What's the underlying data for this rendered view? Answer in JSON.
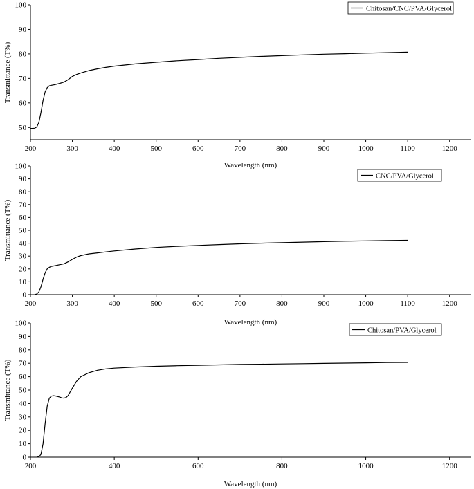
{
  "chart_data": [
    {
      "type": "line",
      "xlabel": "Wavelength (nm)",
      "ylabel": "Transmittance (T%)",
      "xlim": [
        200,
        1250
      ],
      "ylim": [
        45,
        100
      ],
      "xticks": [
        200,
        300,
        400,
        500,
        600,
        700,
        800,
        900,
        1000,
        1100,
        1200
      ],
      "yticks": [
        50,
        60,
        70,
        80,
        90,
        100
      ],
      "legend_position": "top-right",
      "series": [
        {
          "name": "Chitosan/CNC/PVA/Glycerol",
          "x": [
            200,
            210,
            215,
            220,
            225,
            230,
            235,
            240,
            245,
            250,
            260,
            270,
            280,
            290,
            300,
            310,
            320,
            340,
            360,
            380,
            400,
            450,
            500,
            550,
            600,
            650,
            700,
            750,
            800,
            850,
            900,
            950,
            1000,
            1050,
            1100
          ],
          "y": [
            49.6,
            49.7,
            50.2,
            52,
            56,
            61,
            64.5,
            66.2,
            67,
            67.2,
            67.5,
            68,
            68.5,
            69.5,
            70.8,
            71.6,
            72.2,
            73.2,
            73.9,
            74.5,
            75,
            75.9,
            76.6,
            77.2,
            77.7,
            78.2,
            78.6,
            79,
            79.3,
            79.6,
            79.9,
            80.1,
            80.3,
            80.5,
            80.7
          ]
        }
      ]
    },
    {
      "type": "line",
      "xlabel": "Wavelength (nm)",
      "ylabel": "Transmittance (T%)",
      "xlim": [
        200,
        1250
      ],
      "ylim": [
        0,
        100
      ],
      "xticks": [
        200,
        300,
        400,
        500,
        600,
        700,
        800,
        900,
        1000,
        1100,
        1200
      ],
      "yticks": [
        0,
        10,
        20,
        30,
        40,
        50,
        60,
        70,
        80,
        90,
        100
      ],
      "legend_position": "top-right",
      "series": [
        {
          "name": "CNC/PVA/Glycerol",
          "x": [
            210,
            215,
            220,
            225,
            230,
            235,
            240,
            245,
            250,
            260,
            270,
            280,
            290,
            300,
            310,
            320,
            340,
            360,
            380,
            400,
            450,
            500,
            550,
            600,
            650,
            700,
            750,
            800,
            850,
            900,
            950,
            1000,
            1050,
            1100
          ],
          "y": [
            0,
            0.5,
            2,
            6,
            12,
            17,
            20,
            21.3,
            22,
            22.6,
            23.3,
            24,
            25.5,
            27.5,
            29.2,
            30.4,
            31.7,
            32.5,
            33.2,
            34,
            35.5,
            36.7,
            37.6,
            38.3,
            38.9,
            39.5,
            40,
            40.4,
            40.8,
            41.2,
            41.5,
            41.8,
            42,
            42.2
          ]
        }
      ]
    },
    {
      "type": "line",
      "xlabel": "Wavelength (nm)",
      "ylabel": "Transmittance (T%)",
      "xlim": [
        200,
        1250
      ],
      "ylim": [
        0,
        100
      ],
      "xticks": [
        200,
        400,
        600,
        800,
        1000,
        1200
      ],
      "yticks": [
        0,
        10,
        20,
        30,
        40,
        50,
        60,
        70,
        80,
        90,
        100
      ],
      "legend_position": "top-right",
      "series": [
        {
          "name": "Chitosan/PVA/Glycerol",
          "x": [
            215,
            220,
            225,
            230,
            235,
            240,
            245,
            250,
            255,
            260,
            265,
            270,
            275,
            280,
            285,
            290,
            300,
            310,
            320,
            340,
            360,
            380,
            400,
            450,
            500,
            550,
            600,
            650,
            700,
            750,
            800,
            850,
            900,
            950,
            1000,
            1050,
            1100
          ],
          "y": [
            0,
            0.3,
            2,
            10,
            25,
            38,
            44,
            45.5,
            45.8,
            45.6,
            45.2,
            44.8,
            44.2,
            44,
            44.5,
            46,
            51.5,
            56.5,
            60,
            63,
            64.8,
            65.8,
            66.4,
            67.2,
            67.8,
            68.2,
            68.5,
            68.8,
            69.1,
            69.3,
            69.5,
            69.7,
            69.9,
            70.1,
            70.3,
            70.5,
            70.6
          ]
        }
      ]
    }
  ]
}
